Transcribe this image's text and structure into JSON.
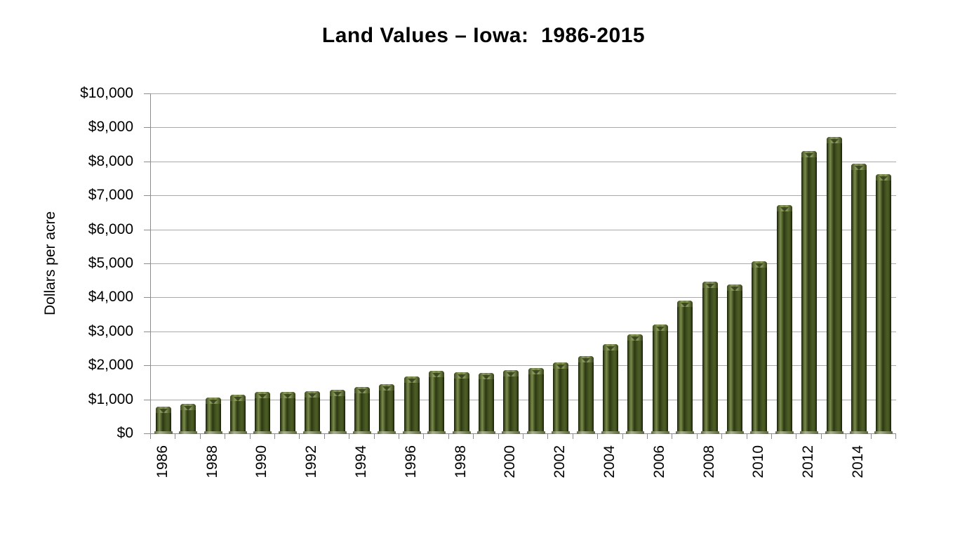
{
  "page": {
    "background_color": "#ffffff",
    "text_color": "#000000"
  },
  "chart_data": {
    "type": "bar",
    "title": "Land Values – Iowa:  1986-2015",
    "xlabel": "",
    "ylabel": "Dollars per acre",
    "ylim": [
      0,
      10000
    ],
    "ytick_interval": 1000,
    "grid": "horizontal",
    "legend": "none",
    "categories": [
      "1986",
      "1987",
      "1988",
      "1989",
      "1990",
      "1991",
      "1992",
      "1993",
      "1994",
      "1995",
      "1996",
      "1997",
      "1998",
      "1999",
      "2000",
      "2001",
      "2002",
      "2003",
      "2004",
      "2005",
      "2006",
      "2007",
      "2008",
      "2009",
      "2010",
      "2011",
      "2012",
      "2013",
      "2014",
      "2015"
    ],
    "values": [
      787,
      875,
      1054,
      1139,
      1214,
      1219,
      1249,
      1275,
      1356,
      1455,
      1682,
      1837,
      1801,
      1781,
      1857,
      1926,
      2083,
      2275,
      2629,
      2914,
      3204,
      3908,
      4468,
      4371,
      5064,
      6708,
      8296,
      8716,
      7943,
      7633
    ],
    "y_ticks": [
      {
        "value": 0,
        "label": "$0"
      },
      {
        "value": 1000,
        "label": "$1,000"
      },
      {
        "value": 2000,
        "label": "$2,000"
      },
      {
        "value": 3000,
        "label": "$3,000"
      },
      {
        "value": 4000,
        "label": "$4,000"
      },
      {
        "value": 5000,
        "label": "$5,000"
      },
      {
        "value": 6000,
        "label": "$6,000"
      },
      {
        "value": 7000,
        "label": "$7,000"
      },
      {
        "value": 8000,
        "label": "$8,000"
      },
      {
        "value": 9000,
        "label": "$9,000"
      },
      {
        "value": 10000,
        "label": "$10,000"
      }
    ],
    "x_labels_shown": [
      "1986",
      "1988",
      "1990",
      "1992",
      "1994",
      "1996",
      "1998",
      "2000",
      "2002",
      "2004",
      "2006",
      "2008",
      "2010",
      "2012",
      "2014"
    ],
    "x_label_rotation_degrees": -90,
    "colors": {
      "bar_edge_dark": "#161d08",
      "bar_shadow": "#2a3412",
      "bar_body": "#4d5d26",
      "bar_highlight": "#7b8a4e",
      "bar_dark_band": "#2c3712",
      "bar_cap_light": "#8a9a5c",
      "bar_cap_mid": "#6f7f42",
      "bar_base_light": "#a9b08f",
      "bar_base_dark": "#5e6842",
      "gridline": "#a9a9a9",
      "axis": "#8c8c8c",
      "text": "#000000",
      "background": "#ffffff"
    }
  }
}
